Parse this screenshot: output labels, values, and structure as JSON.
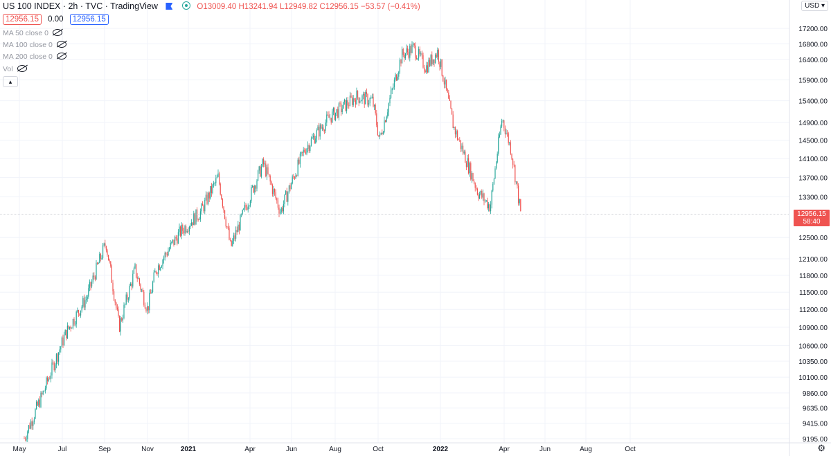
{
  "header": {
    "symbol": "US 100 INDEX · 2h · TVC · TradingView",
    "ohlc": "O13009.40 H13241.94 L12949.82 C12956.15 −53.57 (−0.41%)",
    "sell_price": "12956.15",
    "spread": "0.00",
    "buy_price": "12956.15"
  },
  "indicators": [
    "MA 50 close 0",
    "MA 100 close 0",
    "MA 200 close 0",
    "Vol"
  ],
  "currency": "USD",
  "last_price": {
    "price": "12956.15",
    "countdown": "58:40"
  },
  "colors": {
    "up": "#26a69a",
    "down": "#ef5350",
    "grid": "#f0f3fa",
    "text": "#131722"
  },
  "icons": [
    "eye-off-icon",
    "chevron-up-icon",
    "chevron-down-icon",
    "gear-icon",
    "flag-icon",
    "status-dot-icon"
  ],
  "chart_data": {
    "type": "candlestick",
    "title": "US 100 INDEX · 2h · TVC",
    "y_axis_ticks": [
      17200,
      16800,
      16400,
      15900,
      15400,
      14900,
      14500,
      14100,
      13700,
      13300,
      12956.15,
      12500,
      12100,
      11800,
      11500,
      11200,
      10900,
      10600,
      10350,
      10100,
      9860,
      9635,
      9415,
      9195
    ],
    "y_tick_labels": [
      "17200.00",
      "16800.00",
      "16400.00",
      "15900.00",
      "15400.00",
      "14900.00",
      "14500.00",
      "14100.00",
      "13700.00",
      "13300.00",
      "",
      "12500.00",
      "12100.00",
      "11800.00",
      "11500.00",
      "11200.00",
      "10900.00",
      "10600.00",
      "10350.00",
      "10100.00",
      "9860.00",
      "9635.00",
      "9415.00",
      "9195.00"
    ],
    "y_scale": "log",
    "x_axis_ticks": [
      "May",
      "Jul",
      "Sep",
      "Nov",
      "2021",
      "Apr",
      "Jun",
      "Aug",
      "Oct",
      "2022",
      "Apr",
      "Jun",
      "Aug",
      "Oct"
    ],
    "x_bold_ticks": [
      "2021",
      "2022"
    ],
    "price_path": [
      [
        "May 2020",
        9200
      ],
      [
        "Jun 2020",
        9850
      ],
      [
        "Jul 2020",
        10800
      ],
      [
        "Aug 2020",
        11400
      ],
      [
        "early Sep 2020",
        12400
      ],
      [
        "Sep 2020",
        10900
      ],
      [
        "Oct 2020",
        11900
      ],
      [
        "Nov 2020",
        11200
      ],
      [
        "Nov 2020",
        11900
      ],
      [
        "Dec 2020",
        12600
      ],
      [
        "Jan 2021",
        13000
      ],
      [
        "Feb 2021",
        13700
      ],
      [
        "Mar 2021",
        12300
      ],
      [
        "Apr 2021",
        14000
      ],
      [
        "May 2021",
        13000
      ],
      [
        "Jun 2021",
        14300
      ],
      [
        "Jul 2021",
        15000
      ],
      [
        "Aug 2021",
        15500
      ],
      [
        "Sep 2021",
        15400
      ],
      [
        "Oct 2021",
        14500
      ],
      [
        "Nov 2021",
        16500
      ],
      [
        "late Nov 2021",
        16700
      ],
      [
        "Dec 2021",
        16200
      ],
      [
        "Jan 2022",
        16600
      ],
      [
        "Jan 2022",
        14800
      ],
      [
        "Feb 2022",
        13400
      ],
      [
        "Mar 2022",
        13100
      ],
      [
        "Mar 2022",
        15000
      ],
      [
        "Apr 2022",
        14300
      ],
      [
        "late Apr 2022",
        12956.15
      ]
    ],
    "last_close": 12956.15,
    "grid": true
  }
}
